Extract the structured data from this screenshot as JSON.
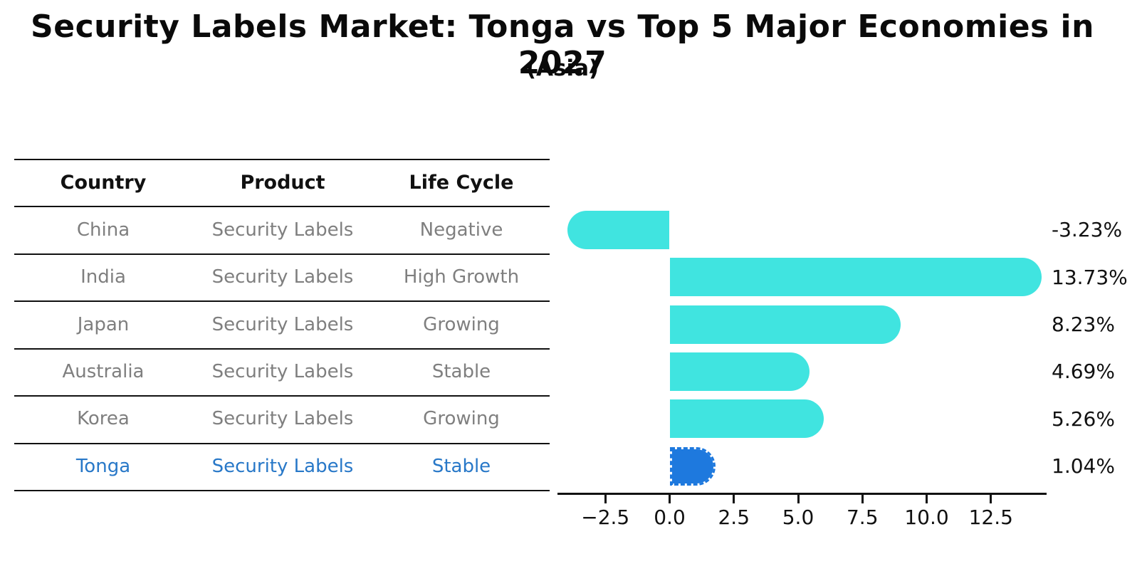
{
  "title": "Security Labels Market: Tonga vs Top 5 Major Economies in 2027",
  "subtitle": "(Asia)",
  "table": {
    "columns": [
      "Country",
      "Product",
      "Life Cycle"
    ],
    "rows": [
      {
        "country": "China",
        "product": "Security Labels",
        "life_cycle": "Negative",
        "highlighted": false
      },
      {
        "country": "India",
        "product": "Security Labels",
        "life_cycle": "High Growth",
        "highlighted": false
      },
      {
        "country": "Japan",
        "product": "Security Labels",
        "life_cycle": "Growing",
        "highlighted": false
      },
      {
        "country": "Australia",
        "product": "Security Labels",
        "life_cycle": "Stable",
        "highlighted": false
      },
      {
        "country": "Korea",
        "product": "Security Labels",
        "life_cycle": "Growing",
        "highlighted": false
      },
      {
        "country": "Tonga",
        "product": "Security Labels",
        "life_cycle": "Stable",
        "highlighted": true
      }
    ]
  },
  "chart_data": {
    "type": "bar",
    "orientation": "horizontal",
    "categories": [
      "China",
      "India",
      "Japan",
      "Australia",
      "Korea",
      "Tonga"
    ],
    "values": [
      -3.23,
      13.73,
      8.23,
      4.69,
      5.26,
      1.04
    ],
    "value_labels": [
      "-3.23%",
      "13.73%",
      "8.23%",
      "4.69%",
      "5.26%",
      "1.04%"
    ],
    "x_tick_labels": [
      "−2.5",
      "0.0",
      "2.5",
      "5.0",
      "7.5",
      "10.0",
      "12.5"
    ],
    "x_tick_values": [
      -2.5,
      0,
      2.5,
      5,
      7.5,
      10,
      12.5
    ],
    "xlim": [
      -4.4,
      14.7
    ],
    "grid": false,
    "bar_color": "#40E4E0",
    "highlight_color": "#1E79DE",
    "highlight_index": 5,
    "highlight_edge_style": "dashed"
  },
  "colors": {
    "title_text": "#0a0a0a",
    "table_header_text": "#111111",
    "table_cell_text": "#7f7f7f",
    "highlight_row_text": "#2878c8",
    "axis": "#111111"
  }
}
